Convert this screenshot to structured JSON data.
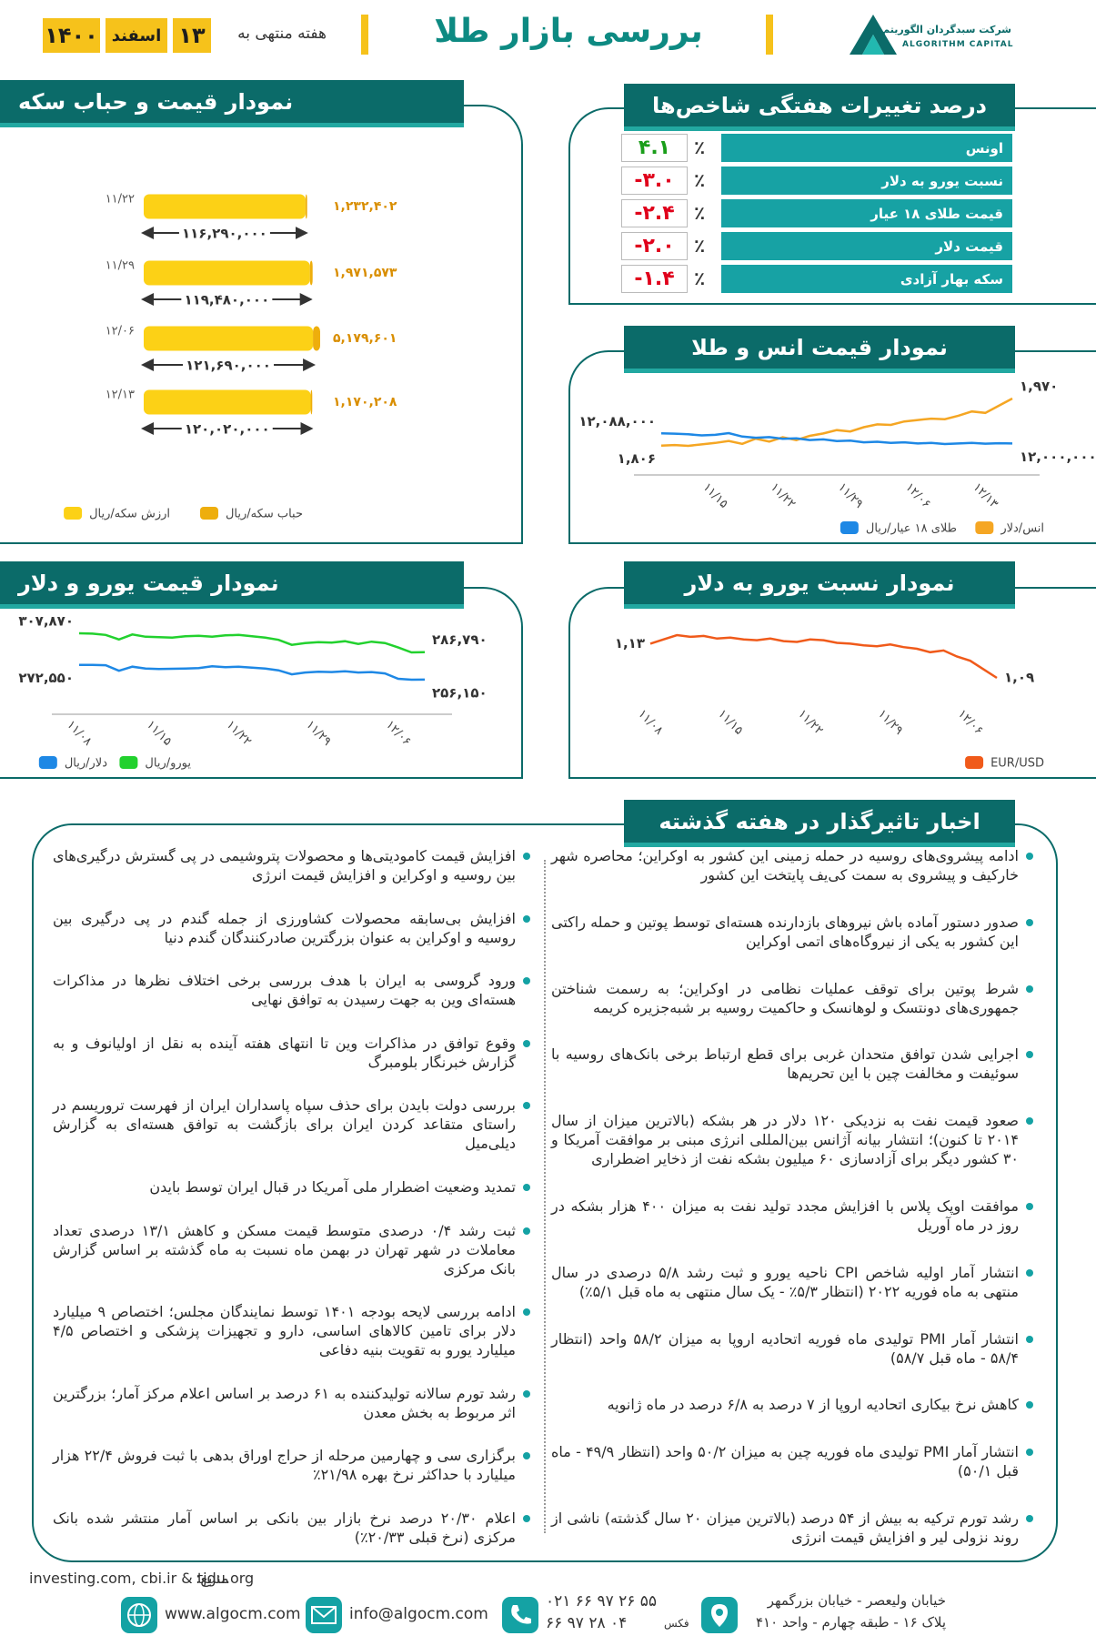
{
  "header": {
    "title": "بررسی بازار طلا",
    "week_label": "هفته منتهی به",
    "day": "۱۳",
    "month": "اسفند",
    "year": "۱۴۰۰",
    "company": "شرکت سبدگردان الگوریتم",
    "company_en": "ALGORITHM CAPITAL"
  },
  "indices": {
    "title": "درصد تغییرات هفتگی شاخص‌ها",
    "unit": "٪",
    "rows": [
      {
        "name": "اونس",
        "value": "۴.۱",
        "color": "#1a9e1a"
      },
      {
        "name": "نسبت یورو به دلار",
        "value": "-۳.۰",
        "color": "#e0001b"
      },
      {
        "name": "قیمت طلای ۱۸ عیار",
        "value": "-۲.۴",
        "color": "#e0001b"
      },
      {
        "name": "قیمت دلار",
        "value": "-۲.۰",
        "color": "#e0001b"
      },
      {
        "name": "سکه بهار آزادی",
        "value": "-۱.۴",
        "color": "#e0001b"
      }
    ]
  },
  "chart_data": [
    {
      "type": "bar",
      "orientation": "horizontal",
      "stacked": true,
      "title": "نمودار قیمت و حباب سکه",
      "categories": [
        "۱۱/۲۲",
        "۱۱/۲۹",
        "۱۲/۰۶",
        "۱۲/۱۳"
      ],
      "series": [
        {
          "name": "ارزش سکه/ریال",
          "color": "#fcd116",
          "values": [
            116290000,
            119480000,
            121690000,
            120020000
          ],
          "value_labels": [
            "۱۱۶,۲۹۰,۰۰۰",
            "۱۱۹,۴۸۰,۰۰۰",
            "۱۲۱,۶۹۰,۰۰۰",
            "۱۲۰,۰۲۰,۰۰۰"
          ]
        },
        {
          "name": "حباب سکه/ریال",
          "color": "#eeae0c",
          "values": [
            1232402,
            1971573,
            5179601,
            1170208
          ],
          "value_labels": [
            "۱,۲۳۲,۴۰۲",
            "۱,۹۷۱,۵۷۳",
            "۵,۱۷۹,۶۰۱",
            "۱,۱۷۰,۲۰۸"
          ]
        }
      ]
    },
    {
      "type": "line",
      "title": "نمودار قیمت انس و طلا",
      "categories": [
        null,
        null,
        null,
        null,
        "۱۱/۱۵",
        null,
        null,
        null,
        null,
        "۱۱/۲۲",
        null,
        null,
        null,
        null,
        "۱۱/۲۹",
        null,
        null,
        null,
        null,
        "۱۲/۰۶",
        null,
        null,
        null,
        null,
        "۱۲/۱۳",
        null,
        null
      ],
      "series": [
        {
          "name": "انس/دلار",
          "color": "#f5a623",
          "values": [
            1806,
            1808,
            1805,
            1810,
            1815,
            1822,
            1812,
            1830,
            1820,
            1835,
            1825,
            1840,
            1848,
            1860,
            1855,
            1870,
            1880,
            1878,
            1890,
            1895,
            1900,
            1898,
            1910,
            1925,
            1920,
            1945,
            1970
          ],
          "value_labels": [
            "۱,۸۰۶",
            null,
            null,
            null,
            null,
            null,
            null,
            null,
            null,
            null,
            null,
            null,
            null,
            null,
            null,
            null,
            null,
            null,
            null,
            null,
            null,
            null,
            null,
            null,
            null,
            null,
            "۱,۹۷۰"
          ]
        },
        {
          "name": "طلای ۱۸ عیار/ریال",
          "color": "#1e88e5",
          "axis": "y2",
          "values": [
            12088000,
            12085000,
            12080000,
            12070000,
            12075000,
            12090000,
            12060000,
            12050000,
            12055000,
            12040000,
            12045000,
            12030000,
            12035000,
            12020000,
            12025000,
            12010000,
            12015000,
            12005000,
            12010000,
            12000000,
            12005000,
            11995000,
            12000000,
            12005000,
            11998000,
            12002000,
            12000000
          ],
          "value_labels": [
            "۱۲,۰۸۸,۰۰۰",
            null,
            null,
            null,
            null,
            null,
            null,
            null,
            null,
            null,
            null,
            null,
            null,
            null,
            null,
            null,
            null,
            null,
            null,
            null,
            null,
            null,
            null,
            null,
            null,
            null,
            "۱۲,۰۰۰,۰۰۰"
          ]
        }
      ]
    },
    {
      "type": "line",
      "title": "نمودار قیمت یورو و دلار",
      "categories": [
        "۱۱/۰۸",
        null,
        null,
        null,
        null,
        null,
        "۱۱/۱۵",
        null,
        null,
        null,
        null,
        null,
        "۱۱/۲۲",
        null,
        null,
        null,
        null,
        null,
        "۱۱/۲۹",
        null,
        null,
        null,
        null,
        null,
        "۱۲/۰۶",
        null,
        null
      ],
      "series": [
        {
          "name": "یورو/ریال",
          "color": "#22d12e",
          "values": [
            307870,
            307500,
            306000,
            301000,
            306500,
            304000,
            303500,
            303000,
            304500,
            305000,
            304000,
            305500,
            306000,
            304500,
            303000,
            300500,
            295000,
            297000,
            298000,
            297500,
            299000,
            296000,
            298500,
            297000,
            292000,
            286500,
            286790
          ],
          "value_labels": [
            "۳۰۷,۸۷۰",
            null,
            null,
            null,
            null,
            null,
            null,
            null,
            null,
            null,
            null,
            null,
            null,
            null,
            null,
            null,
            null,
            null,
            null,
            null,
            null,
            null,
            null,
            null,
            null,
            null,
            "۲۸۶,۷۹۰"
          ]
        },
        {
          "name": "دلار/ریال",
          "color": "#1e88e5",
          "values": [
            272550,
            272500,
            272200,
            266000,
            270500,
            268500,
            268000,
            268200,
            268500,
            269000,
            271000,
            270000,
            270500,
            269500,
            268500,
            266500,
            262000,
            264000,
            265000,
            264500,
            265500,
            264000,
            264500,
            263000,
            257000,
            256000,
            256150
          ],
          "value_labels": [
            "۲۷۲,۵۵۰",
            null,
            null,
            null,
            null,
            null,
            null,
            null,
            null,
            null,
            null,
            null,
            null,
            null,
            null,
            null,
            null,
            null,
            null,
            null,
            null,
            null,
            null,
            null,
            null,
            null,
            "۲۵۶,۱۵۰"
          ]
        }
      ]
    },
    {
      "type": "line",
      "title": "نمودار نسبت یورو به دلار",
      "categories": [
        "۱۱/۰۸",
        null,
        null,
        null,
        null,
        null,
        "۱۱/۱۵",
        null,
        null,
        null,
        null,
        null,
        "۱۱/۲۲",
        null,
        null,
        null,
        null,
        null,
        "۱۱/۲۹",
        null,
        null,
        null,
        null,
        null,
        "۱۲/۰۶",
        null,
        null
      ],
      "series": [
        {
          "name": "EUR/USD",
          "color": "#f05a1a",
          "values": [
            1.13,
            1.135,
            1.14,
            1.138,
            1.139,
            1.136,
            1.137,
            1.135,
            1.134,
            1.136,
            1.133,
            1.132,
            1.135,
            1.134,
            1.131,
            1.13,
            1.128,
            1.127,
            1.129,
            1.126,
            1.124,
            1.12,
            1.122,
            1.115,
            1.11,
            1.1,
            1.09
          ],
          "value_labels": [
            "۱,۱۳",
            null,
            null,
            null,
            null,
            null,
            null,
            null,
            null,
            null,
            null,
            null,
            null,
            null,
            null,
            null,
            null,
            null,
            null,
            null,
            null,
            null,
            null,
            null,
            null,
            null,
            "۱,۰۹"
          ]
        }
      ]
    }
  ],
  "news": {
    "title": "اخبار تاثیرگذار در هفته گذشته",
    "right": [
      "ادامه پیشروی‌های روسیه در حمله زمینی این کشور به اوکراین؛ محاصره شهر خارکیف و پیشروی به سمت کی‌یف پایتخت این کشور",
      "صدور دستور آماده باش نیروهای بازدارنده هسته‌ای توسط پوتین و حمله راکتی این کشور به یکی از نیروگاه‌های اتمی اوکراین",
      "شرط پوتین برای توقف عملیات نظامی در اوکراین؛ به رسمت شناختن جمهوری‌های دونتسک و لوهانسک و حاکمیت روسیه بر شبه‌جزیره کریمه",
      "اجرایی شدن توافق متحدان غربی برای قطع ارتباط برخی بانک‌های روسیه با سوئیفت و مخالفت چین با این تحریم‌ها",
      "صعود قیمت نفت به نزدیکی ۱۲۰ دلار در هر بشکه (بالاترین میزان از سال ۲۰۱۴ تا کنون)؛ انتشار بیانه آژانس بین‌المللی انرژی مبنی بر موافقت آمریکا و ۳۰ کشور دیگر برای آزادسازی ۶۰ میلیون بشکه نفت از ذخایر اضطراری",
      "موافقت اوپک پلاس با افزایش مجدد تولید نفت به میزان ۴۰۰ هزار بشکه در روز در ماه آوریل",
      "انتشار آمار اولیه شاخص CPI ناحیه یورو و ثبت رشد ۵/۸ درصدی در سال منتهی به ماه فوریه ۲۰۲۲ (انتظار ۵/۳٪ - یک سال منتهی به ماه قبل ۵/۱٪)",
      "انتشار آمار PMI تولیدی ماه فوریه اتحادیه اروپا به میزان ۵۸/۲ واحد (انتظار ۵۸/۴ - ماه قبل ۵۸/۷)",
      "کاهش نرخ بیکاری اتحادیه اروپا از ۷ درصد به ۶/۸ درصد در ماه ژانویه",
      "انتشار آمار PMI تولیدی ماه فوریه چین به میزان ۵۰/۲ واحد (انتظار ۴۹/۹ - ماه قبل ۵۰/۱)",
      "رشد تورم ترکیه به بیش از ۵۴ درصد (بالاترین میزان ۲۰ سال گذشته) ناشی از روند نزولی لیر و افزایش قیمت انرژی"
    ],
    "left": [
      "افزایش قیمت کامودیتی‌ها و محصولات پتروشیمی در پی گسترش درگیری‌های بین روسیه و اوکراین و افزایش قیمت انرژی",
      "افزایش بی‌سابقه محصولات کشاورزی از جمله گندم در پی درگیری بین روسیه و اوکراین به عنوان بزرگترین صادرکنندگان گندم دنیا",
      "ورود گروسی به ایران با هدف بررسی برخی اختلاف نظرها در مذاکرات هسته‌ای وین به جهت رسیدن به توافق نهایی",
      "وقوع توافق در مذاکرات وین تا انتهای هفته آینده به نقل از اولیانوف و به گزارش خبرنگار بلومبرگ",
      "بررسی دولت بایدن برای حذف سپاه پاسداران ایران از فهرست تروریسم در راستای متقاعد کردن ایران برای بازگشت به توافق هسته‌ای به گزارش دیلی‌میل",
      "تمدید وضعیت اضطرار ملی آمریکا در قبال ایران توسط بایدن",
      "ثبت رشد ۰/۴ درصدی متوسط قیمت مسکن و کاهش ۱۳/۱ درصدی تعداد معاملات در شهر تهران در بهمن ماه نسبت به ماه گذشته بر اساس گزارش بانک مرکزی",
      "ادامه بررسی لایحه بودجه ۱۴۰۱ توسط نمایندگان مجلس؛ اختصاص ۹ میلیارد دلار برای تامین کالاهای اساسی، دارو و تجهیزات پزشکی و اختصاص ۴/۵ میلیارد یورو به تقویت بنیه دفاعی",
      "رشد تورم سالانه تولیدکننده به ۶۱ درصد بر اساس اعلام مرکز آمار؛ بزرگترین اثر مربوط به بخش معدن",
      "برگزاری سی و چهارمین مرحله از حراج اوراق بدهی با ثبت فروش ۲۲/۴ هزار میلیارد با حداکثر نرخ بهره ۲۱/۹۸٪",
      "اعلام ۲۰/۳۰ درصد نرخ بازار بین بانکی بر اساس آمار منتشر شده بانک مرکزی (نرخ قبلی ۲۰/۳۳٪)"
    ]
  },
  "footer": {
    "sources_label": "منابع:",
    "sources": "investing.com, cbi.ir & tjgu.org",
    "website": "www.algocm.com",
    "email": "info@algocm.com",
    "phone": "۰۲۱ ۶۶ ۹۷ ۲۶ ۵۵",
    "fax": "۶۶ ۹۷ ۲۸ ۰۴",
    "fax_label": "فکس",
    "address_1": "خیابان ولیعصر - خیابان بزرگمهر",
    "address_2": "پلاک ۱۶ - طبقه چهارم - واحد ۴۱۰"
  }
}
